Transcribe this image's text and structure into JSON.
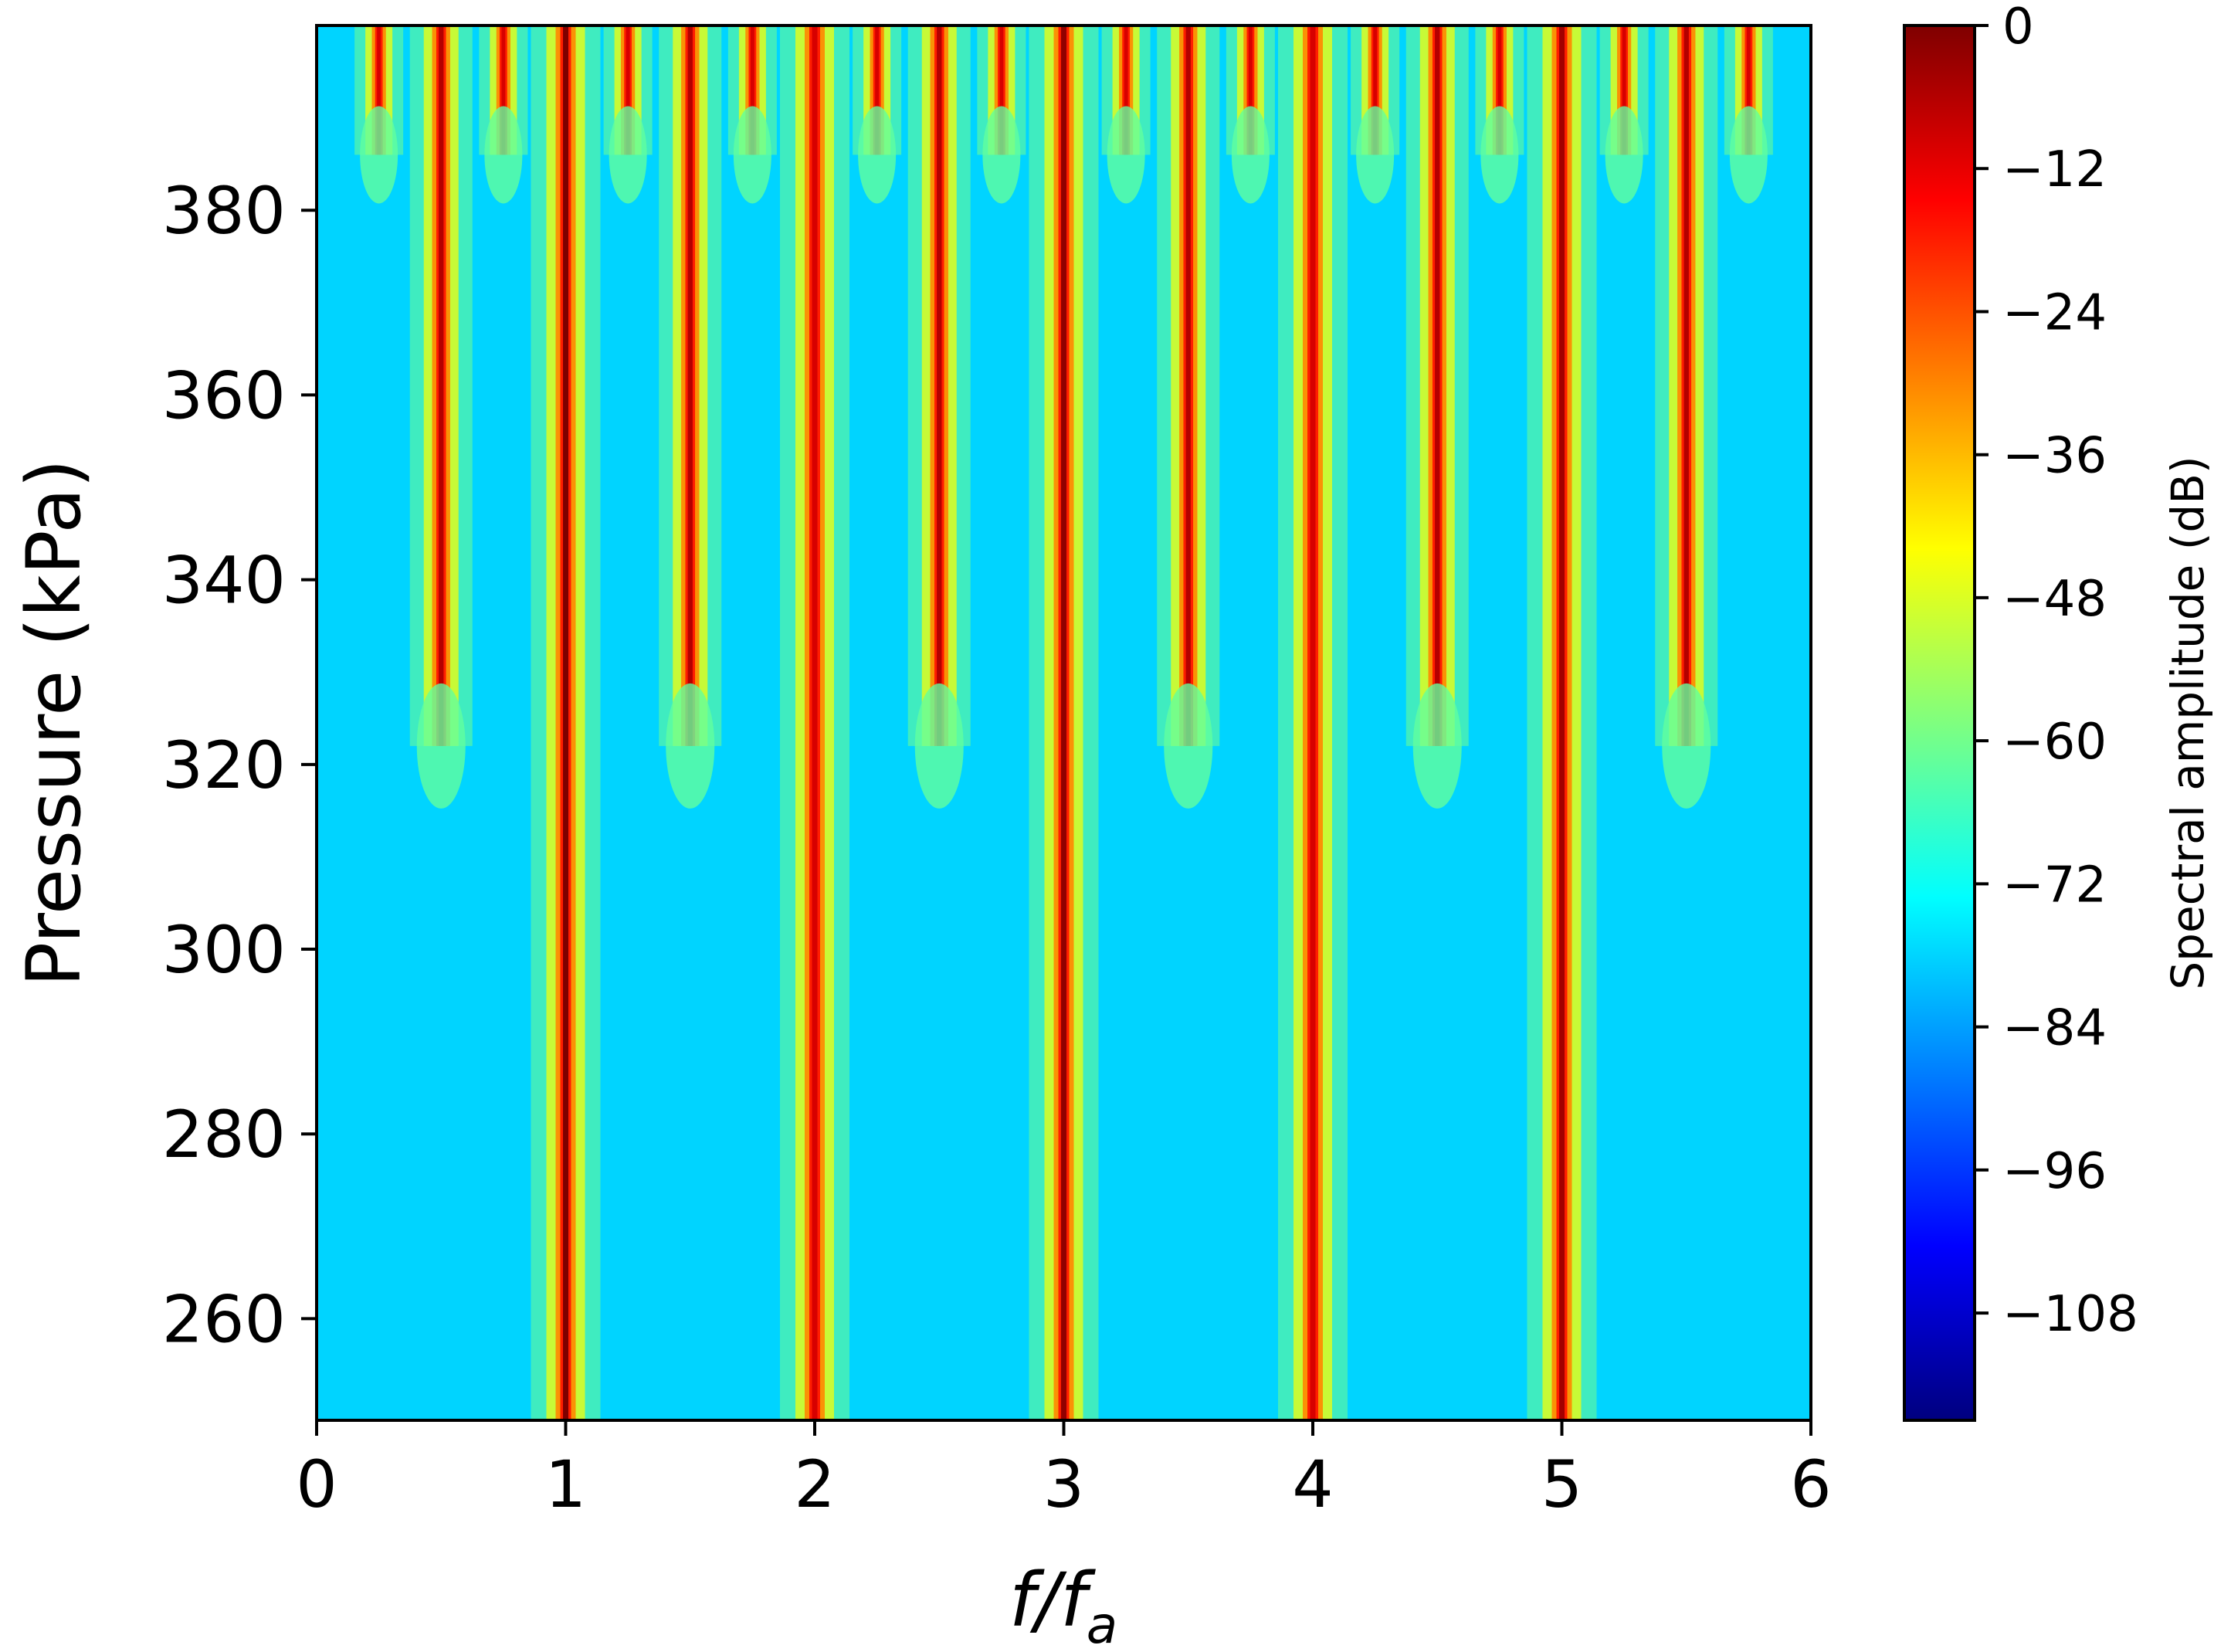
{
  "chart_data": {
    "type": "heatmap",
    "title": "",
    "xlabel": "f/f_a",
    "xlabel_parts": {
      "base": "f",
      "slash": "/",
      "sub_base": "f",
      "sub": "a"
    },
    "ylabel": "Pressure (kPa)",
    "xlim": [
      0,
      6
    ],
    "ylim": [
      249,
      400
    ],
    "x_ticks": [
      0,
      1,
      2,
      3,
      4,
      5,
      6
    ],
    "x_tick_labels": [
      "0",
      "1",
      "2",
      "3",
      "4",
      "5",
      "6"
    ],
    "y_ticks": [
      260,
      280,
      300,
      320,
      340,
      360,
      380
    ],
    "y_tick_labels": [
      "260",
      "280",
      "300",
      "320",
      "340",
      "360",
      "380"
    ],
    "colorbar": {
      "label": "Spectral amplitude (dB)",
      "colormap": "jet",
      "range": [
        -117,
        0
      ],
      "ticks": [
        0,
        -12,
        -24,
        -36,
        -48,
        -60,
        -72,
        -84,
        -96,
        -108
      ],
      "tick_labels": [
        "0",
        "−12",
        "−24",
        "−36",
        "−48",
        "−60",
        "−72",
        "−84",
        "−96",
        "−108"
      ],
      "stops": [
        "#00007f",
        "#0000ff",
        "#007fff",
        "#00ffff",
        "#7fff7f",
        "#ffff00",
        "#ff7f00",
        "#ff0000",
        "#7f0000"
      ]
    },
    "background_level_db": -78,
    "harmonic_lines": [
      {
        "f": 1,
        "from_pressure": 249,
        "peak_db": 0
      },
      {
        "f": 2,
        "from_pressure": 249,
        "peak_db": -10
      },
      {
        "f": 3,
        "from_pressure": 249,
        "peak_db": -2
      },
      {
        "f": 4,
        "from_pressure": 249,
        "peak_db": -10
      },
      {
        "f": 5,
        "from_pressure": 249,
        "peak_db": -4
      }
    ],
    "subharmonic_lines": [
      {
        "f": 0.5,
        "from_pressure": 322,
        "peak_db": -6
      },
      {
        "f": 1.5,
        "from_pressure": 322,
        "peak_db": -6
      },
      {
        "f": 2.5,
        "from_pressure": 322,
        "peak_db": -6
      },
      {
        "f": 3.5,
        "from_pressure": 322,
        "peak_db": -6
      },
      {
        "f": 4.5,
        "from_pressure": 322,
        "peak_db": -6
      },
      {
        "f": 5.5,
        "from_pressure": 322,
        "peak_db": -6
      }
    ],
    "quarter_lines": [
      {
        "f": 0.25,
        "from_pressure": 386,
        "peak_db": -10
      },
      {
        "f": 0.75,
        "from_pressure": 386,
        "peak_db": -10
      },
      {
        "f": 1.25,
        "from_pressure": 386,
        "peak_db": -10
      },
      {
        "f": 1.75,
        "from_pressure": 386,
        "peak_db": -10
      },
      {
        "f": 2.25,
        "from_pressure": 386,
        "peak_db": -10
      },
      {
        "f": 2.75,
        "from_pressure": 386,
        "peak_db": -10
      },
      {
        "f": 3.25,
        "from_pressure": 386,
        "peak_db": -10
      },
      {
        "f": 3.75,
        "from_pressure": 386,
        "peak_db": -10
      },
      {
        "f": 4.25,
        "from_pressure": 386,
        "peak_db": -10
      },
      {
        "f": 4.75,
        "from_pressure": 386,
        "peak_db": -10
      },
      {
        "f": 5.25,
        "from_pressure": 386,
        "peak_db": -10
      },
      {
        "f": 5.75,
        "from_pressure": 386,
        "peak_db": -10
      }
    ]
  }
}
